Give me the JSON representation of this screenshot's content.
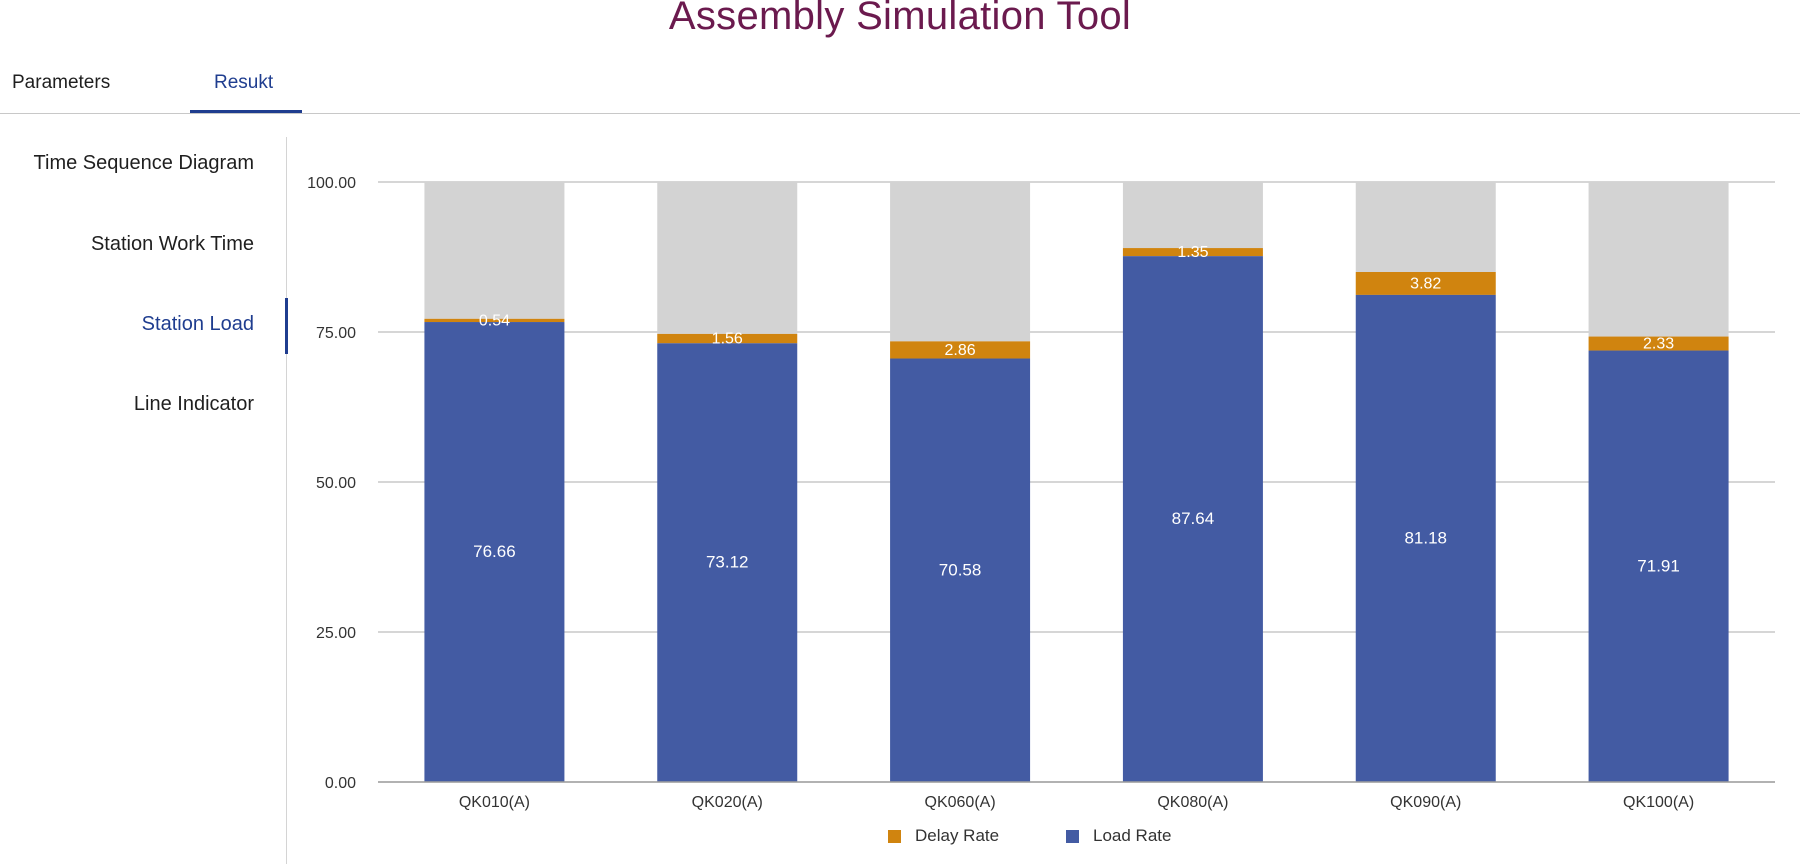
{
  "app": {
    "title": "Assembly Simulation Tool"
  },
  "tabs": [
    {
      "label": "Parameters",
      "active": false
    },
    {
      "label": "Resukt",
      "active": true
    }
  ],
  "sidebar": {
    "items": [
      {
        "label": "Time Sequence Diagram",
        "active": false
      },
      {
        "label": "Station Work Time",
        "active": false
      },
      {
        "label": "Station Load",
        "active": true
      },
      {
        "label": "Line Indicator",
        "active": false
      }
    ]
  },
  "colors": {
    "load": "#435ba3",
    "delay": "#d0840f",
    "remainder": "#d3d3d3",
    "accent": "#1f3d8f",
    "title": "#6b1a4e"
  },
  "chart_data": {
    "type": "bar",
    "stacked": true,
    "categories": [
      "QK010(A)",
      "QK020(A)",
      "QK060(A)",
      "QK080(A)",
      "QK090(A)",
      "QK100(A)"
    ],
    "series": [
      {
        "name": "Load Rate",
        "values": [
          76.66,
          73.12,
          70.58,
          87.64,
          81.18,
          71.91
        ]
      },
      {
        "name": "Delay Rate",
        "values": [
          0.54,
          1.56,
          2.86,
          1.35,
          3.82,
          2.33
        ]
      }
    ],
    "ylim": [
      0,
      100
    ],
    "yticks": [
      "0.00",
      "25.00",
      "50.00",
      "75.00",
      "100.00"
    ],
    "value_labels": {
      "load": [
        "76.66",
        "73.12",
        "70.58",
        "87.64",
        "81.18",
        "71.91"
      ],
      "delay": [
        "0.54",
        "1.56",
        "2.86",
        "1.35",
        "3.82",
        "2.33"
      ]
    },
    "legend": [
      {
        "name": "Delay Rate",
        "color": "#d0840f"
      },
      {
        "name": "Load Rate",
        "color": "#435ba3"
      }
    ],
    "legend_position": "bottom",
    "grid": true
  }
}
